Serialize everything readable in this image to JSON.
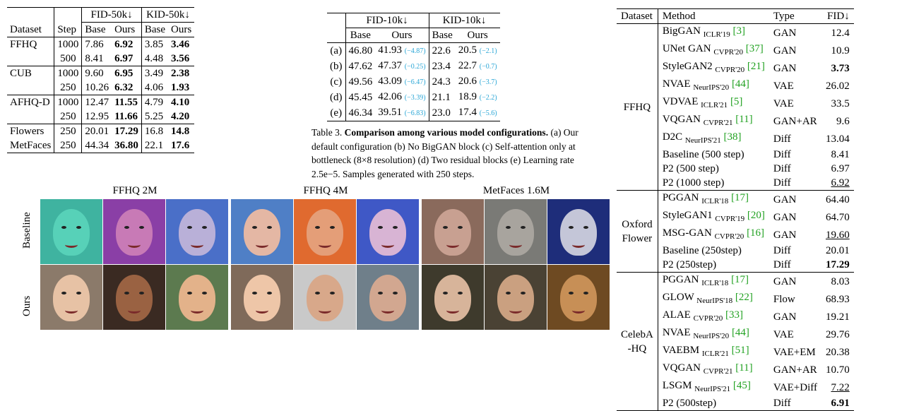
{
  "table1": {
    "group_headers": [
      "FID-50k↓",
      "KID-50k↓"
    ],
    "headers": [
      "Dataset",
      "Step",
      "Base",
      "Ours",
      "Base",
      "Ours"
    ],
    "rows": [
      {
        "dataset": "FFHQ",
        "step": "1000",
        "fid_base": "7.86",
        "fid_ours": "6.92",
        "kid_base": "3.85",
        "kid_ours": "3.46"
      },
      {
        "dataset": "",
        "step": "500",
        "fid_base": "8.41",
        "fid_ours": "6.97",
        "kid_base": "4.48",
        "kid_ours": "3.56"
      },
      {
        "dataset": "CUB",
        "step": "1000",
        "fid_base": "9.60",
        "fid_ours": "6.95",
        "kid_base": "3.49",
        "kid_ours": "2.38"
      },
      {
        "dataset": "",
        "step": "250",
        "fid_base": "10.26",
        "fid_ours": "6.32",
        "kid_base": "4.06",
        "kid_ours": "1.93"
      },
      {
        "dataset": "AFHQ-D",
        "step": "1000",
        "fid_base": "12.47",
        "fid_ours": "11.55",
        "kid_base": "4.79",
        "kid_ours": "4.10"
      },
      {
        "dataset": "",
        "step": "250",
        "fid_base": "12.95",
        "fid_ours": "11.66",
        "kid_base": "5.25",
        "kid_ours": "4.20"
      },
      {
        "dataset": "Flowers",
        "step": "250",
        "fid_base": "20.01",
        "fid_ours": "17.29",
        "kid_base": "16.8",
        "kid_ours": "14.8"
      },
      {
        "dataset": "MetFaces",
        "step": "250",
        "fid_base": "44.34",
        "fid_ours": "36.80",
        "kid_base": "22.1",
        "kid_ours": "17.6"
      }
    ]
  },
  "table3": {
    "group_headers": [
      "FID-10k↓",
      "KID-10k↓"
    ],
    "headers": [
      "Base",
      "Ours",
      "Base",
      "Ours"
    ],
    "rows": [
      {
        "id": "(a)",
        "fid_base": "46.80",
        "fid_ours": "41.93",
        "fid_delta": "(−4.87)",
        "kid_base": "22.6",
        "kid_ours": "20.5",
        "kid_delta": "(−2.1)"
      },
      {
        "id": "(b)",
        "fid_base": "47.62",
        "fid_ours": "47.37",
        "fid_delta": "(−0.25)",
        "kid_base": "23.4",
        "kid_ours": "22.7",
        "kid_delta": "(−0.7)"
      },
      {
        "id": "(c)",
        "fid_base": "49.56",
        "fid_ours": "43.09",
        "fid_delta": "(−6.47)",
        "kid_base": "24.3",
        "kid_ours": "20.6",
        "kid_delta": "(−3.7)"
      },
      {
        "id": "(d)",
        "fid_base": "45.45",
        "fid_ours": "42.06",
        "fid_delta": "(−3.39)",
        "kid_base": "21.1",
        "kid_ours": "18.9",
        "kid_delta": "(−2.2)"
      },
      {
        "id": "(e)",
        "fid_base": "46.34",
        "fid_ours": "39.51",
        "fid_delta": "(−6.83)",
        "kid_base": "23.0",
        "kid_ours": "17.4",
        "kid_delta": "(−5.6)"
      }
    ],
    "caption_label": "Table 3.",
    "caption_bold": "Comparison among various model configurations.",
    "caption_rest": " (a) Our default configuration (b) No BigGAN block (c) Self-attention only at bottleneck (8×8 resolution) (d) Two residual blocks (e) Learning rate 2.5e−5. Samples generated with 250 steps."
  },
  "big_table": {
    "headers": [
      "Dataset",
      "Method",
      "Type",
      "FID↓"
    ],
    "groups": [
      {
        "dataset_line1": "FFHQ",
        "dataset_line2": "",
        "rows": [
          {
            "method": "BigGAN",
            "venue": "ICLR'19",
            "cite": "[3]",
            "type": "GAN",
            "fid": "12.4"
          },
          {
            "method": "UNet GAN",
            "venue": "CVPR'20",
            "cite": "[37]",
            "type": "GAN",
            "fid": "10.9"
          },
          {
            "method": "StyleGAN2",
            "venue": "CVPR'20",
            "cite": "[21]",
            "type": "GAN",
            "fid": "3.73"
          },
          {
            "method": "NVAE",
            "venue": "NeurIPS'20",
            "cite": "[44]",
            "type": "VAE",
            "fid": "26.02"
          },
          {
            "method": "VDVAE",
            "venue": "ICLR'21",
            "cite": "[5]",
            "type": "VAE",
            "fid": "33.5"
          },
          {
            "method": "VQGAN",
            "venue": "CVPR'21",
            "cite": "[11]",
            "type": "GAN+AR",
            "fid": "9.6"
          },
          {
            "method": "D2C",
            "venue": "NeurIPS'21",
            "cite": "[38]",
            "type": "Diff",
            "fid": "13.04"
          },
          {
            "method": "Baseline (500 step)",
            "venue": "",
            "cite": "",
            "type": "Diff",
            "fid": "8.41"
          },
          {
            "method": "P2 (500 step)",
            "venue": "",
            "cite": "",
            "type": "Diff",
            "fid": "6.97"
          },
          {
            "method": "P2 (1000 step)",
            "venue": "",
            "cite": "",
            "type": "Diff",
            "fid": "6.92"
          }
        ]
      },
      {
        "dataset_line1": "Oxford",
        "dataset_line2": "Flower",
        "rows": [
          {
            "method": "PGGAN",
            "venue": "ICLR'18",
            "cite": "[17]",
            "type": "GAN",
            "fid": "64.40"
          },
          {
            "method": "StyleGAN1",
            "venue": "CVPR'19",
            "cite": "[20]",
            "type": "GAN",
            "fid": "64.70"
          },
          {
            "method": "MSG-GAN",
            "venue": "CVPR'20",
            "cite": "[16]",
            "type": "GAN",
            "fid": "19.60"
          },
          {
            "method": "Baseline (250step)",
            "venue": "",
            "cite": "",
            "type": "Diff",
            "fid": "20.01"
          },
          {
            "method": "P2 (250step)",
            "venue": "",
            "cite": "",
            "type": "Diff",
            "fid": "17.29"
          }
        ]
      },
      {
        "dataset_line1": "CelebA",
        "dataset_line2": "-HQ",
        "rows": [
          {
            "method": "PGGAN",
            "venue": "ICLR'18",
            "cite": "[17]",
            "type": "GAN",
            "fid": "8.03"
          },
          {
            "method": "GLOW",
            "venue": "NeurIPS'18",
            "cite": "[22]",
            "type": "Flow",
            "fid": "68.93"
          },
          {
            "method": "ALAE",
            "venue": "CVPR'20",
            "cite": "[33]",
            "type": "GAN",
            "fid": "19.21"
          },
          {
            "method": "NVAE",
            "venue": "NeurIPS'20",
            "cite": "[44]",
            "type": "VAE",
            "fid": "29.76"
          },
          {
            "method": "VAEBM",
            "venue": "ICLR'21",
            "cite": "[51]",
            "type": "VAE+EM",
            "fid": "20.38"
          },
          {
            "method": "VQGAN",
            "venue": "CVPR'21",
            "cite": "[11]",
            "type": "GAN+AR",
            "fid": "10.70"
          },
          {
            "method": "LSGM",
            "venue": "NeurIPS'21",
            "cite": "[45]",
            "type": "VAE+Diff",
            "fid": "7.22"
          },
          {
            "method": "P2 (500step)",
            "venue": "",
            "cite": "",
            "type": "Diff",
            "fid": "6.91"
          }
        ]
      }
    ]
  },
  "figure": {
    "groups": [
      "FFHQ 2M",
      "FFHQ 4M",
      "MetFaces 1.6M"
    ],
    "row_labels": [
      "Baseline",
      "Ours"
    ],
    "baseline_faces": [
      {
        "bg": "#3fb3a0",
        "skin": "#57d1b8"
      },
      {
        "bg": "#8a3fa6",
        "skin": "#c87ab6"
      },
      {
        "bg": "#4a6fc8",
        "skin": "#b9b0d8"
      },
      {
        "bg": "#4f7fc6",
        "skin": "#e4b7a4"
      },
      {
        "bg": "#e06a2f",
        "skin": "#e49e78"
      },
      {
        "bg": "#3f58c6",
        "skin": "#d8b4d4"
      },
      {
        "bg": "#8a6a5c",
        "skin": "#c8a091"
      },
      {
        "bg": "#7a7a76",
        "skin": "#a8a49e"
      },
      {
        "bg": "#1e2d7a",
        "skin": "#c4c6d8"
      }
    ],
    "ours_faces": [
      {
        "bg": "#8b7a6a",
        "skin": "#e7c2a5"
      },
      {
        "bg": "#3a2a22",
        "skin": "#9a6242"
      },
      {
        "bg": "#5c7a4f",
        "skin": "#e3b28a"
      },
      {
        "bg": "#7f6a5a",
        "skin": "#eec6a8"
      },
      {
        "bg": "#c9c9c9",
        "skin": "#d8a88a"
      },
      {
        "bg": "#6f7f8a",
        "skin": "#d2a790"
      },
      {
        "bg": "#3e3a2c",
        "skin": "#d7b49a"
      },
      {
        "bg": "#4a4234",
        "skin": "#caa080"
      },
      {
        "bg": "#6e4a22",
        "skin": "#c78f56"
      }
    ]
  }
}
